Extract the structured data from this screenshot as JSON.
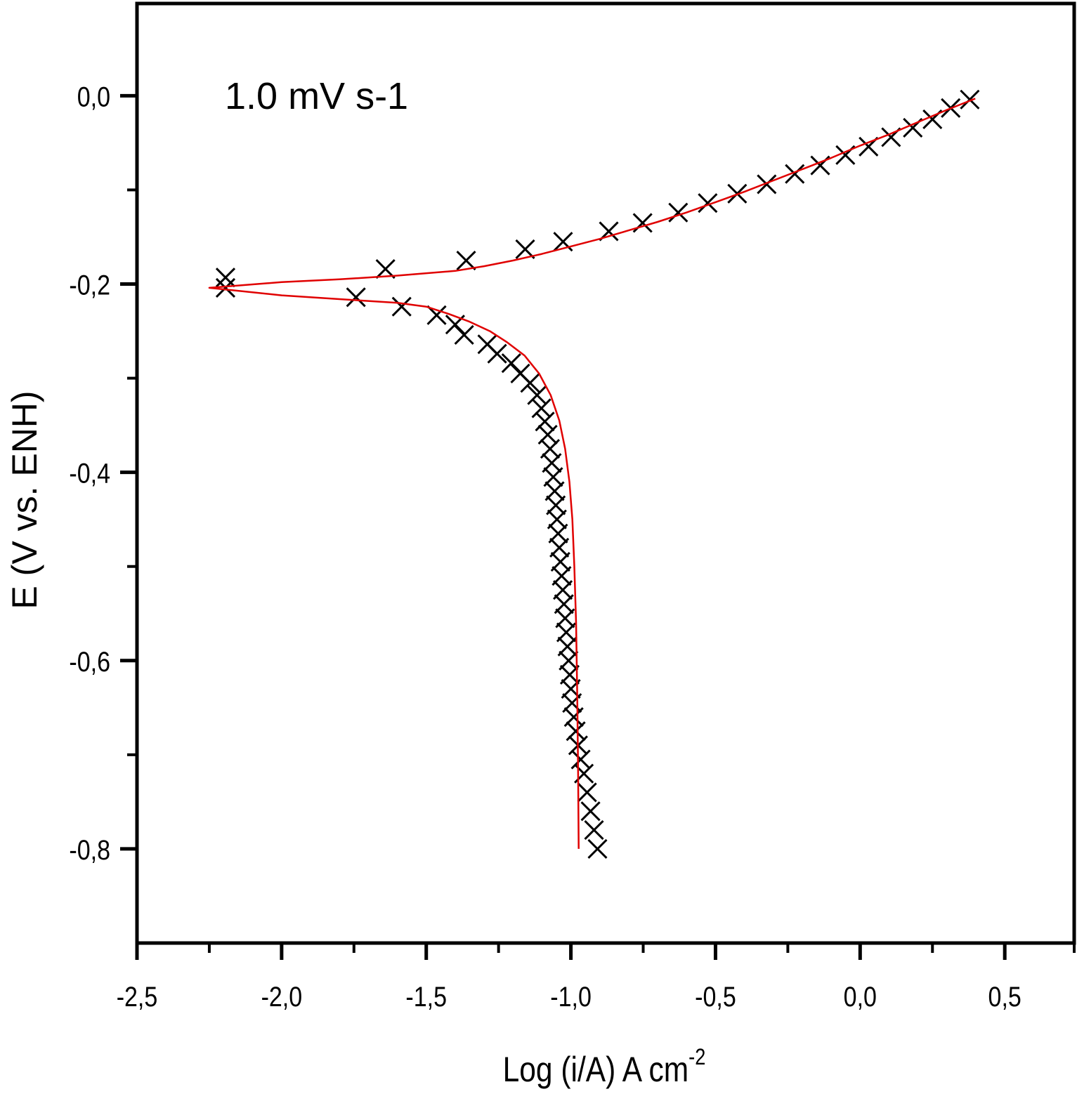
{
  "chart_data": {
    "type": "scatter",
    "title": "",
    "annotation": "1.0 mV s-1",
    "xlabel": "Log (i/A) A cm",
    "xlabel_superscript": "-2",
    "ylabel": "E (V vs. ENH)",
    "xlim": [
      -2.5,
      0.74
    ],
    "ylim": [
      -0.9,
      0.098
    ],
    "x_major_ticks": [
      -2.5,
      -2.0,
      -1.5,
      -1.0,
      -0.5,
      0.0,
      0.5
    ],
    "x_minor_ticks": [
      -2.25,
      -1.75,
      -1.25,
      -0.75,
      -0.25,
      0.25
    ],
    "x_tick_labels": [
      "-2,5",
      "-2,0",
      "-1,5",
      "-1,0",
      "-0,5",
      "0,0",
      "0,5"
    ],
    "y_major_ticks": [
      0.0,
      -0.2,
      -0.4,
      -0.6,
      -0.8
    ],
    "y_minor_ticks": [
      -0.1,
      -0.3,
      -0.5,
      -0.7
    ],
    "y_tick_labels": [
      "0,0",
      "-0,2",
      "-0,4",
      "-0,6",
      "-0,8"
    ],
    "grid": false,
    "colors": {
      "markers": "#000000",
      "fit": "#e00000",
      "axes": "#000000"
    },
    "series": [
      {
        "name": "anodic-data",
        "marker": "x",
        "x": [
          -2.194,
          -1.641,
          -1.362,
          -1.158,
          -1.027,
          -0.869,
          -0.752,
          -0.629,
          -0.527,
          -0.425,
          -0.323,
          -0.226,
          -0.138,
          -0.051,
          0.029,
          0.107,
          0.182,
          0.25,
          0.313,
          0.379
        ],
        "y": [
          -0.193,
          -0.184,
          -0.175,
          -0.163,
          -0.155,
          -0.144,
          -0.135,
          -0.124,
          -0.114,
          -0.104,
          -0.094,
          -0.083,
          -0.074,
          -0.063,
          -0.054,
          -0.044,
          -0.034,
          -0.025,
          -0.013,
          -0.004
        ]
      },
      {
        "name": "cathodic-data",
        "marker": "x",
        "x": [
          -2.194,
          -1.743,
          -1.585,
          -1.464,
          -1.4,
          -1.369,
          -1.289,
          -1.255,
          -1.206,
          -1.175,
          -1.141,
          -1.117,
          -1.102,
          -1.09,
          -1.08,
          -1.072,
          -1.066,
          -1.061,
          -1.056,
          -1.052,
          -1.048,
          -1.044,
          -1.04,
          -1.036,
          -1.032,
          -1.028,
          -1.024,
          -1.02,
          -1.016,
          -1.012,
          -1.008,
          -1.004,
          -1.0,
          -0.996,
          -0.99,
          -0.983,
          -0.975,
          -0.966,
          -0.955,
          -0.944,
          -0.932,
          -0.92,
          -0.908
        ],
        "y": [
          -0.204,
          -0.214,
          -0.224,
          -0.233,
          -0.243,
          -0.254,
          -0.264,
          -0.274,
          -0.284,
          -0.295,
          -0.305,
          -0.318,
          -0.332,
          -0.346,
          -0.36,
          -0.375,
          -0.39,
          -0.405,
          -0.42,
          -0.435,
          -0.45,
          -0.465,
          -0.48,
          -0.495,
          -0.51,
          -0.525,
          -0.54,
          -0.555,
          -0.57,
          -0.585,
          -0.6,
          -0.615,
          -0.63,
          -0.645,
          -0.66,
          -0.675,
          -0.69,
          -0.705,
          -0.72,
          -0.74,
          -0.76,
          -0.78,
          -0.8
        ]
      },
      {
        "name": "fit-curve",
        "marker": "line",
        "x": [
          0.398,
          0.3,
          0.2,
          0.1,
          0.0,
          -0.1,
          -0.2,
          -0.3,
          -0.4,
          -0.5,
          -0.6,
          -0.7,
          -0.8,
          -0.9,
          -1.0,
          -1.1,
          -1.2,
          -1.3,
          -1.4,
          -1.6,
          -1.8,
          -2.0,
          -2.25,
          -2.0,
          -1.8,
          -1.6,
          -1.5,
          -1.42,
          -1.35,
          -1.28,
          -1.22,
          -1.16,
          -1.11,
          -1.07,
          -1.04,
          -1.02,
          -1.005,
          -0.995,
          -0.988,
          -0.982,
          -0.978,
          -0.975,
          -0.973
        ],
        "y": [
          -0.003,
          -0.015,
          -0.028,
          -0.041,
          -0.053,
          -0.066,
          -0.078,
          -0.09,
          -0.102,
          -0.113,
          -0.124,
          -0.134,
          -0.143,
          -0.152,
          -0.16,
          -0.168,
          -0.175,
          -0.181,
          -0.186,
          -0.191,
          -0.195,
          -0.198,
          -0.204,
          -0.212,
          -0.216,
          -0.22,
          -0.224,
          -0.232,
          -0.24,
          -0.25,
          -0.262,
          -0.276,
          -0.295,
          -0.318,
          -0.345,
          -0.375,
          -0.41,
          -0.45,
          -0.5,
          -0.56,
          -0.64,
          -0.72,
          -0.8
        ]
      }
    ]
  }
}
